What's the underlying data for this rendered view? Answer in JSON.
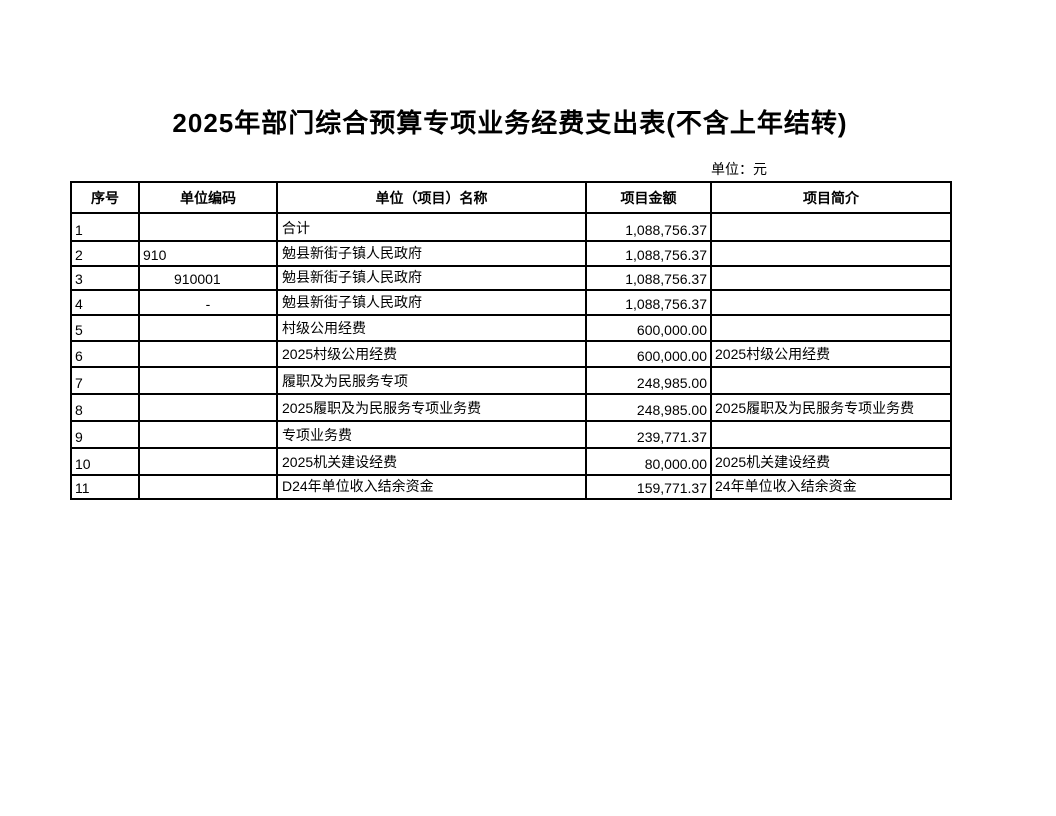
{
  "page": {
    "title": "2025年部门综合预算专项业务经费支出表(不含上年结转)",
    "unit_note": "单位：元"
  },
  "table": {
    "columns": [
      "序号",
      "单位编码",
      "单位（项目）名称",
      "项目金额",
      "项目简介"
    ],
    "col_keys": [
      "index",
      "unit-code",
      "unit-project-name",
      "project-amount",
      "project-brief"
    ],
    "rows": [
      [
        "1",
        "",
        "合计",
        "1,088,756.37",
        ""
      ],
      [
        "2",
        "910",
        "勉县新街子镇人民政府",
        "1,088,756.37",
        ""
      ],
      [
        "3",
        "910001",
        "勉县新街子镇人民政府",
        "1,088,756.37",
        ""
      ],
      [
        "4",
        "-",
        "勉县新街子镇人民政府",
        "1,088,756.37",
        ""
      ],
      [
        "5",
        "",
        "村级公用经费",
        "600,000.00",
        ""
      ],
      [
        "6",
        "",
        "2025村级公用经费",
        "600,000.00",
        "2025村级公用经费"
      ],
      [
        "7",
        "",
        "履职及为民服务专项",
        "248,985.00",
        ""
      ],
      [
        "8",
        "",
        "2025履职及为民服务专项业务费",
        "248,985.00",
        "2025履职及为民服务专项业务费"
      ],
      [
        "9",
        "",
        "专项业务费",
        "239,771.37",
        ""
      ],
      [
        "10",
        "",
        "2025机关建设经费",
        "80,000.00",
        "2025机关建设经费"
      ],
      [
        "11",
        "",
        "D24年单位收入结余资金",
        "159,771.37",
        "24年单位收入结余资金"
      ]
    ]
  }
}
